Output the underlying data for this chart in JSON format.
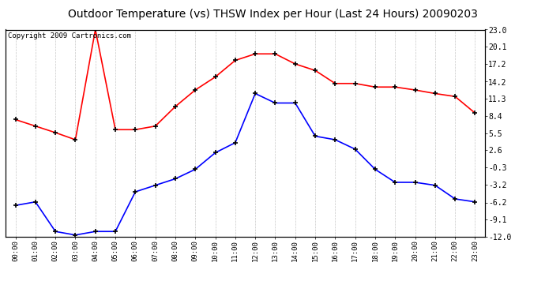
{
  "title": "Outdoor Temperature (vs) THSW Index per Hour (Last 24 Hours) 20090203",
  "copyright": "Copyright 2009 Cartronics.com",
  "hours": [
    "00:00",
    "01:00",
    "02:00",
    "03:00",
    "04:00",
    "05:00",
    "06:00",
    "07:00",
    "08:00",
    "09:00",
    "10:00",
    "11:00",
    "12:00",
    "13:00",
    "14:00",
    "15:00",
    "16:00",
    "17:00",
    "18:00",
    "19:00",
    "20:00",
    "21:00",
    "22:00",
    "23:00"
  ],
  "thsw": [
    7.8,
    6.7,
    5.6,
    4.4,
    23.0,
    6.1,
    6.1,
    6.7,
    10.0,
    12.8,
    15.0,
    17.8,
    18.9,
    18.9,
    17.2,
    16.1,
    13.9,
    13.9,
    13.3,
    13.3,
    12.8,
    12.2,
    11.7,
    8.9
  ],
  "temp": [
    -6.7,
    -6.1,
    -11.1,
    -11.7,
    -11.1,
    -11.1,
    -4.4,
    -3.3,
    -2.2,
    -0.6,
    2.2,
    3.9,
    12.2,
    10.6,
    10.6,
    5.0,
    4.4,
    2.8,
    -0.6,
    -2.8,
    -2.8,
    -3.3,
    -5.6,
    -6.1
  ],
  "thsw_color": "#FF0000",
  "temp_color": "#0000FF",
  "bg_color": "#FFFFFF",
  "plot_bg_color": "#FFFFFF",
  "grid_color": "#C8C8C8",
  "ylim": [
    -12.0,
    23.0
  ],
  "yticks": [
    -12.0,
    -9.1,
    -6.2,
    -3.2,
    -0.3,
    2.6,
    5.5,
    8.4,
    11.3,
    14.2,
    17.2,
    20.1,
    23.0
  ],
  "title_fontsize": 10,
  "copyright_fontsize": 6.5
}
